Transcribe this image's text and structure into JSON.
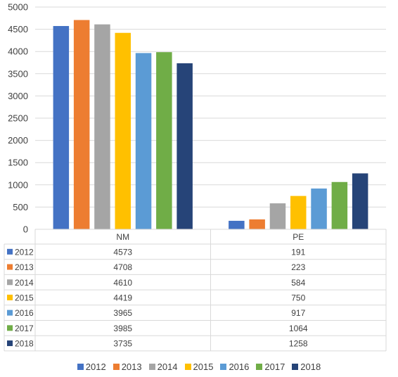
{
  "chart_data": {
    "type": "bar",
    "categories": [
      "NM",
      "PE"
    ],
    "series": [
      {
        "name": "2012",
        "values": [
          4573,
          191
        ],
        "color": "#4472C4"
      },
      {
        "name": "2013",
        "values": [
          4708,
          223
        ],
        "color": "#ED7D31"
      },
      {
        "name": "2014",
        "values": [
          4610,
          584
        ],
        "color": "#A5A5A5"
      },
      {
        "name": "2015",
        "values": [
          4419,
          750
        ],
        "color": "#FFC000"
      },
      {
        "name": "2016",
        "values": [
          3965,
          917
        ],
        "color": "#5B9BD5"
      },
      {
        "name": "2017",
        "values": [
          3985,
          1064
        ],
        "color": "#70AD47"
      },
      {
        "name": "2018",
        "values": [
          3735,
          1258
        ],
        "color": "#264478"
      }
    ],
    "ylim": [
      0,
      5000
    ],
    "yticks": [
      0,
      500,
      1000,
      1500,
      2000,
      2500,
      3000,
      3500,
      4000,
      4500,
      5000
    ],
    "grid": true,
    "legend": "bottom",
    "data_table": true
  }
}
